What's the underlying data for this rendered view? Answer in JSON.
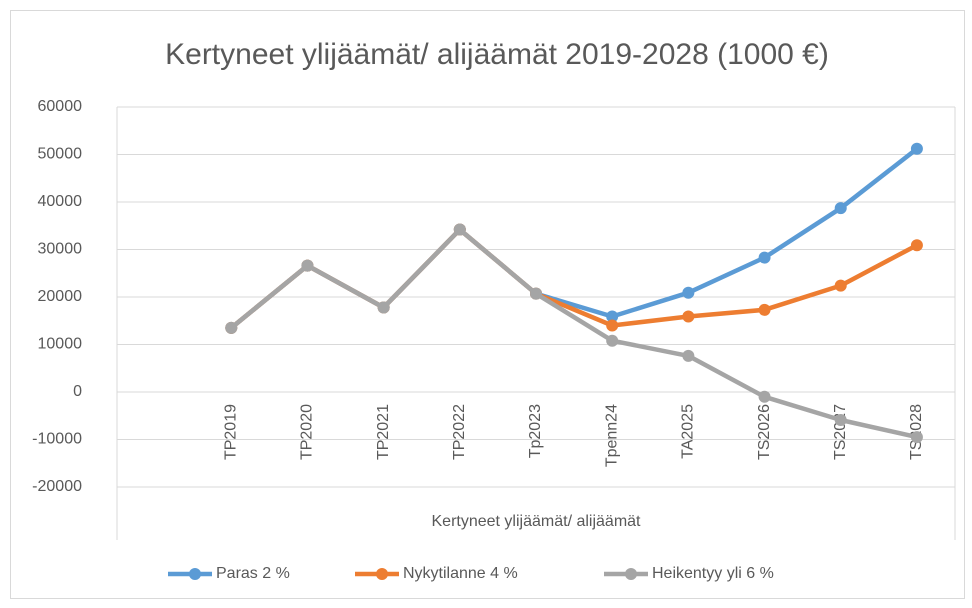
{
  "chart_data": {
    "type": "line",
    "title": "Kertyneet ylijäämät/ alijäämät 2019-2028 (1000 €)",
    "x_label": "Kertyneet ylijäämät/ alijäämät",
    "categories": [
      null,
      "TP2019",
      "TP2020",
      "TP2021",
      "TP2022",
      "Tp2023",
      "Tpenn24",
      "TA2025",
      "TS2026",
      "TS2027",
      "TS2028"
    ],
    "series": [
      {
        "name": "Paras 2 %",
        "color": "#5b9bd5",
        "values": [
          null,
          13500,
          26600,
          17800,
          34200,
          20700,
          15900,
          20900,
          28300,
          38700,
          51200
        ]
      },
      {
        "name": "Nykytilanne 4 %",
        "color": "#ed7d31",
        "values": [
          null,
          13500,
          26600,
          17800,
          34200,
          20700,
          14000,
          15900,
          17300,
          22400,
          30900
        ]
      },
      {
        "name": "Heikentyy yli 6 %",
        "color": "#a5a5a5",
        "values": [
          null,
          13500,
          26600,
          17800,
          34200,
          20700,
          10800,
          7600,
          -1000,
          -5900,
          -9500
        ]
      }
    ],
    "ylim": [
      -20000,
      60000
    ],
    "yticks": [
      -20000,
      -10000,
      0,
      10000,
      20000,
      30000,
      40000,
      50000,
      60000
    ],
    "grid": true,
    "legend": "bottom"
  }
}
